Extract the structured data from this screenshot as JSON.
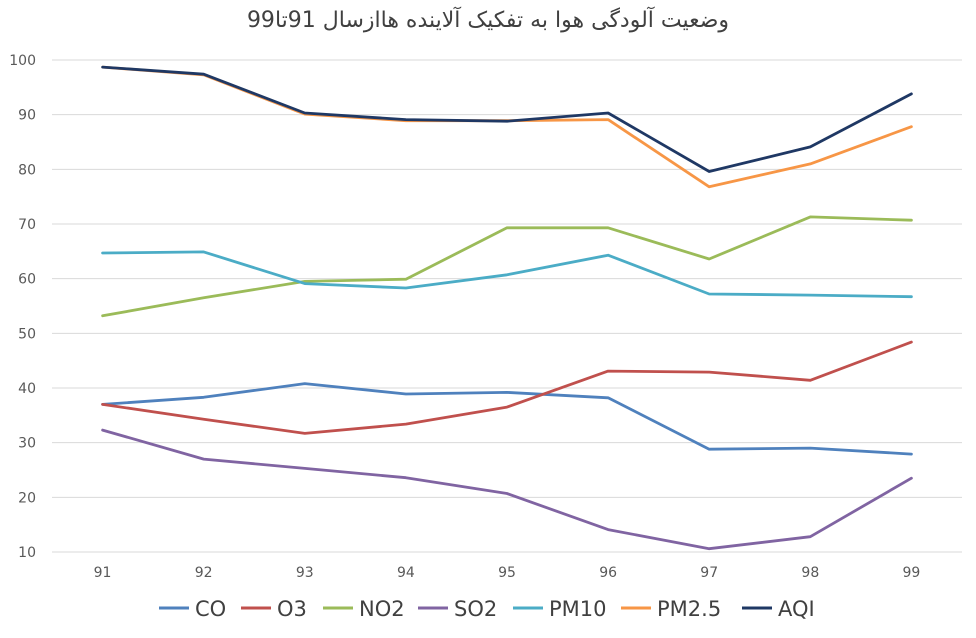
{
  "chart_data": {
    "type": "line",
    "title": "وضعیت آلودگی هوا به تفکیک آلاینده هاازسال 91تا99",
    "xlabel": "",
    "ylabel": "",
    "categories": [
      "91",
      "92",
      "93",
      "94",
      "95",
      "96",
      "97",
      "98",
      "99"
    ],
    "ylim": [
      10,
      100
    ],
    "yticks": [
      10,
      20,
      30,
      40,
      50,
      60,
      70,
      80,
      90,
      100
    ],
    "grid": "horizontal",
    "legend": "bottom",
    "series": [
      {
        "name": "CO",
        "color": "#4F81BD",
        "values": [
          37,
          38.3,
          40.8,
          38.9,
          39.2,
          38.2,
          28.8,
          29,
          27.9
        ]
      },
      {
        "name": "O3",
        "color": "#C0504D",
        "values": [
          37,
          34.3,
          31.7,
          33.4,
          36.5,
          43.1,
          42.9,
          41.4,
          48.4
        ]
      },
      {
        "name": "NO2",
        "color": "#9BBB59",
        "values": [
          53.2,
          56.5,
          59.5,
          59.9,
          69.3,
          69.3,
          63.6,
          71.3,
          70.7
        ]
      },
      {
        "name": "SO2",
        "color": "#8064A2",
        "values": [
          32.3,
          27,
          25.3,
          23.6,
          20.7,
          14.1,
          10.6,
          12.8,
          23.5
        ]
      },
      {
        "name": "PM10",
        "color": "#4BACC6",
        "values": [
          64.7,
          64.9,
          59.1,
          58.3,
          60.7,
          64.3,
          57.2,
          57,
          56.7
        ]
      },
      {
        "name": "PM2.5",
        "color": "#F79646",
        "values": [
          98.7,
          97.3,
          90.1,
          88.9,
          88.9,
          89.1,
          76.8,
          81,
          87.8
        ]
      },
      {
        "name": "AQI",
        "color": "#1F3864",
        "values": [
          98.7,
          97.4,
          90.3,
          89.1,
          88.8,
          90.3,
          79.6,
          84.1,
          93.8
        ]
      }
    ]
  }
}
